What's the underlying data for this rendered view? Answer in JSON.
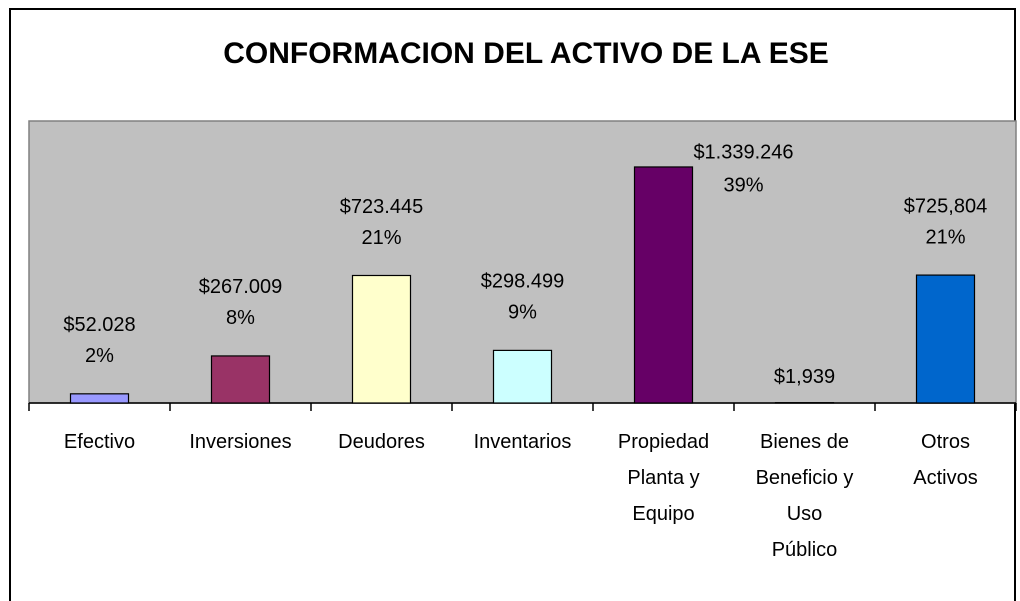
{
  "chart_data": {
    "type": "bar",
    "title": "CONFORMACION DEL ACTIVO DE LA ESE",
    "categories": [
      "Efectivo",
      "Inversiones",
      "Deudores",
      "Inventarios",
      "Propiedad Planta y Equipo",
      "Bienes de Beneficio y Uso Público",
      "Otros Activos"
    ],
    "values": [
      52028,
      267009,
      723445,
      298499,
      1339246,
      1939,
      725804
    ],
    "value_labels": [
      "$52.028",
      "$267.009",
      "$723.445",
      "$298.499",
      "$1.339.246",
      "$1,939",
      "$725,804"
    ],
    "percentages": [
      2,
      8,
      21,
      9,
      39,
      null,
      21
    ],
    "percentage_labels": [
      "2%",
      "8%",
      "21%",
      "9%",
      "39%",
      null,
      "21%"
    ],
    "colors": [
      "#9999ff",
      "#993366",
      "#ffffcc",
      "#ccffff",
      "#660066",
      "#ff8080",
      "#0066cc"
    ],
    "ylim": [
      0,
      1600000
    ]
  }
}
